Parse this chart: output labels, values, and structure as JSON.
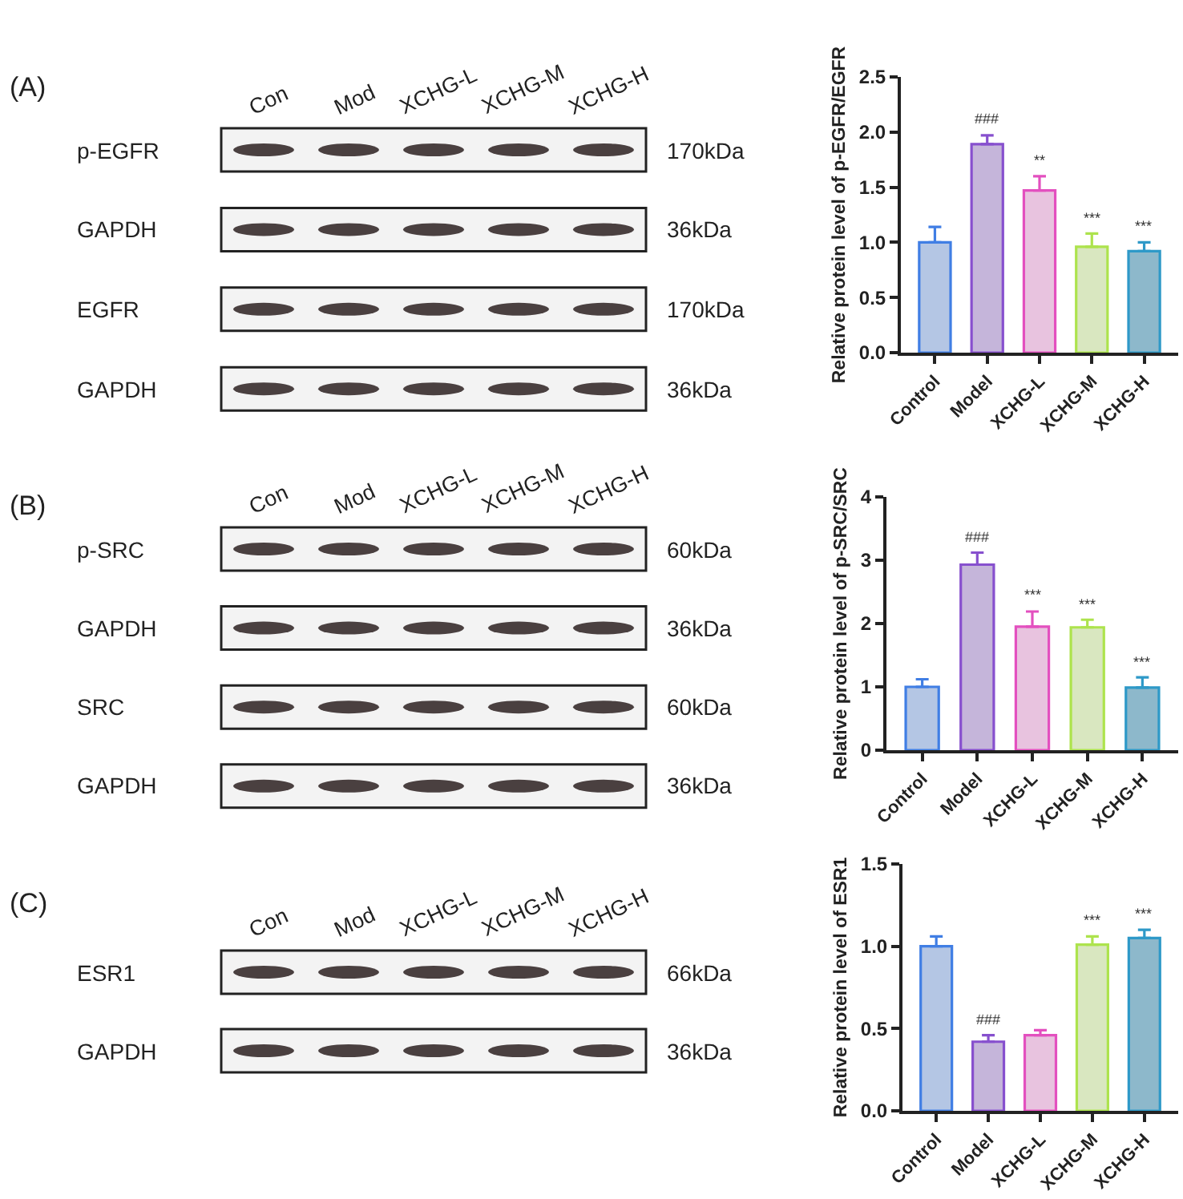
{
  "chart_data": [
    {
      "type": "bar",
      "ylabel": "Relative protein level of p-EGFR/EGFR",
      "categories": [
        "Control",
        "Model",
        "XCHG-L",
        "XCHG-M",
        "XCHG-H"
      ],
      "values": [
        1.0,
        1.89,
        1.47,
        0.96,
        0.92
      ],
      "colors": [
        "#b4c6e4",
        "#c5b5da",
        "#e8c3df",
        "#d9e7c0",
        "#8db8cb"
      ],
      "errors": [
        [
          1.0,
          1.14
        ],
        [
          1.89,
          1.97
        ],
        [
          1.47,
          1.6
        ],
        [
          0.96,
          1.08
        ],
        [
          0.92,
          1.0
        ]
      ],
      "ylim": [
        0,
        2.5
      ],
      "yticks": [
        {
          "value": 0,
          "label": "0.0"
        },
        0.5,
        {
          "value": 1,
          "label": "1.0"
        },
        1.5,
        {
          "value": 2,
          "label": "2.0"
        },
        2.5
      ],
      "annotations": [
        "(A)",
        "Con",
        "Mod",
        "XCHG-L",
        "XCHG-M",
        "XCHG-H",
        "p-EGFR",
        "170kDa",
        "GAPDH",
        "36kDa",
        "EGFR",
        "170kDa",
        "GAPDH",
        "36kDa",
        {
          "text": "###",
          "x": "Model",
          "y": 1.97
        },
        {
          "text": "**",
          "x": "XCHG-L",
          "y": 1.6
        },
        {
          "text": "***",
          "x": "XCHG-M",
          "y": 1.08
        },
        {
          "text": "***",
          "x": "XCHG-H",
          "y": 1.0
        }
      ]
    },
    {
      "type": "bar",
      "ylabel": "Relative protein level of p-SRC/SRC",
      "categories": [
        "Control",
        "Model",
        "XCHG-L",
        "XCHG-M",
        "XCHG-H"
      ],
      "values": [
        1.0,
        2.93,
        1.95,
        1.94,
        0.99
      ],
      "colors": [
        "#b4c6e4",
        "#c5b5da",
        "#e8c3df",
        "#d9e7c0",
        "#8db8cb"
      ],
      "errors": [
        [
          1.0,
          1.12
        ],
        [
          2.93,
          3.12
        ],
        [
          1.95,
          2.19
        ],
        [
          1.94,
          2.06
        ],
        [
          0.99,
          1.15
        ]
      ],
      "ylim": [
        0,
        4
      ],
      "yticks": [
        0,
        1,
        2,
        3,
        4
      ],
      "annotations": [
        "(B)",
        "Con",
        "Mod",
        "XCHG-L",
        "XCHG-M",
        "XCHG-H",
        "p-SRC",
        "60kDa",
        "GAPDH",
        "36kDa",
        "SRC",
        "60kDa",
        "GAPDH",
        "36kDa",
        {
          "text": "###",
          "x": "Model",
          "y": 3.12
        },
        {
          "text": "***",
          "x": "XCHG-L",
          "y": 2.19
        },
        {
          "text": "***",
          "x": "XCHG-M",
          "y": 2.06
        },
        {
          "text": "***",
          "x": "XCHG-H",
          "y": 1.15
        }
      ]
    },
    {
      "type": "bar",
      "ylabel": "Relative protein level of ESR1",
      "categories": [
        "Control",
        "Model",
        "XCHG-L",
        "XCHG-M",
        "XCHG-H"
      ],
      "values": [
        1.0,
        0.42,
        0.46,
        1.01,
        1.05
      ],
      "colors": [
        "#b4c6e4",
        "#c5b5da",
        "#e8c3df",
        "#d9e7c0",
        "#8db8cb"
      ],
      "errors": [
        [
          1.0,
          1.06
        ],
        [
          0.42,
          0.46
        ],
        [
          0.46,
          0.49
        ],
        [
          1.01,
          1.06
        ],
        [
          1.05,
          1.1
        ]
      ],
      "ylim": [
        0,
        1.5
      ],
      "yticks": [
        {
          "value": 0,
          "label": "0.0"
        },
        0.5,
        {
          "value": 1,
          "label": "1.0"
        },
        1.5
      ],
      "annotations": [
        "(C)",
        "Con",
        "Mod",
        "XCHG-L",
        "XCHG-M",
        "XCHG-H",
        "ESR1",
        "66kDa",
        "GAPDH",
        "36kDa",
        {
          "text": "###",
          "x": "Model",
          "y": 0.46
        },
        {
          "text": "***",
          "x": "XCHG-M",
          "y": 1.06
        },
        {
          "text": "***",
          "x": "XCHG-H",
          "y": 1.1
        }
      ]
    }
  ]
}
